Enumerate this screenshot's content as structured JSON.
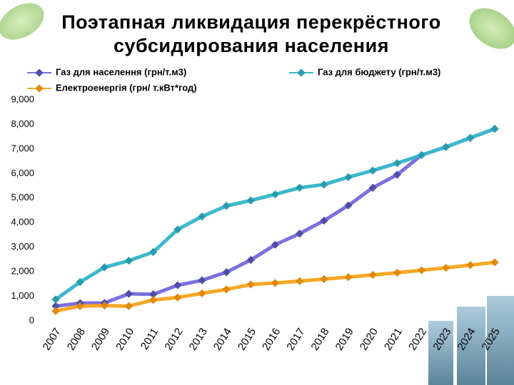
{
  "chart_data": {
    "type": "line",
    "title": [
      "Поэтапная  ликвидация  перекрёстного",
      "субсидирования  населения"
    ],
    "categories": [
      "2007",
      "2008",
      "2009",
      "2010",
      "2011",
      "2012",
      "2013",
      "2014",
      "2015",
      "2016",
      "2017",
      "2018",
      "2019",
      "2020",
      "2021",
      "2022",
      "2023",
      "2024",
      "2025"
    ],
    "series": [
      {
        "name": "Газ для населення (грн/т.м3)",
        "color": "#7b6fe0",
        "marker": "#4f4fa8",
        "values": [
          600,
          720,
          730,
          1100,
          1080,
          1450,
          1650,
          1980,
          2480,
          3100,
          3550,
          4080,
          4700,
          5420,
          5950,
          6750,
          7080,
          7450,
          7820
        ]
      },
      {
        "name": "Газ для бюджету (грн/т.м3)",
        "color": "#3bb8cc",
        "marker": "#2a9aae",
        "values": [
          870,
          1580,
          2180,
          2450,
          2800,
          3720,
          4250,
          4680,
          4900,
          5150,
          5420,
          5550,
          5850,
          6120,
          6420,
          6750,
          7080,
          7450,
          7820
        ]
      },
      {
        "name": "Електроенергія (грн/ т.кВт*год)",
        "color": "#f7a823",
        "marker": "#e08a10",
        "values": [
          400,
          600,
          620,
          600,
          850,
          950,
          1120,
          1280,
          1480,
          1540,
          1620,
          1700,
          1780,
          1870,
          1960,
          2060,
          2160,
          2270,
          2380
        ]
      }
    ],
    "ylim": [
      0,
      9000
    ],
    "yticks": [
      0,
      {
        "value": 1000,
        "label": "1,000"
      },
      {
        "value": 2000,
        "label": "2,000"
      },
      {
        "value": 3000,
        "label": "3,000"
      },
      {
        "value": 4000,
        "label": "4,000"
      },
      {
        "value": 5000,
        "label": "5,000"
      },
      {
        "value": 6000,
        "label": "6,000"
      },
      {
        "value": 7000,
        "label": "7,000"
      },
      {
        "value": 8000,
        "label": "8,000"
      },
      {
        "value": 9000,
        "label": "9,000"
      }
    ],
    "legend": "top",
    "grid": false
  }
}
